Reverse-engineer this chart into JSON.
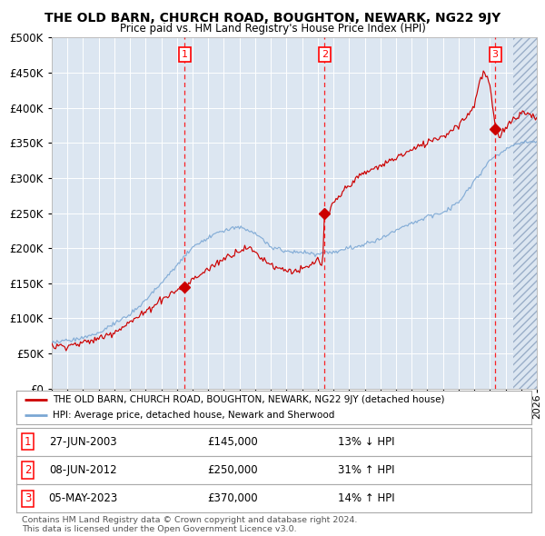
{
  "title": "THE OLD BARN, CHURCH ROAD, BOUGHTON, NEWARK, NG22 9JY",
  "subtitle": "Price paid vs. HM Land Registry's House Price Index (HPI)",
  "red_label": "THE OLD BARN, CHURCH ROAD, BOUGHTON, NEWARK, NG22 9JY (detached house)",
  "blue_label": "HPI: Average price, detached house, Newark and Sherwood",
  "sales": [
    {
      "num": 1,
      "date": "27-JUN-2003",
      "price": 145000,
      "hpi_pct": "13%",
      "hpi_dir": "↓"
    },
    {
      "num": 2,
      "date": "08-JUN-2012",
      "price": 250000,
      "hpi_pct": "31%",
      "hpi_dir": "↑"
    },
    {
      "num": 3,
      "date": "05-MAY-2023",
      "price": 370000,
      "hpi_pct": "14%",
      "hpi_dir": "↑"
    }
  ],
  "sale_years": [
    2003.49,
    2012.44,
    2023.34
  ],
  "sale_prices": [
    145000,
    250000,
    370000
  ],
  "ylim": [
    0,
    500000
  ],
  "xlim_start": 1995,
  "xlim_end": 2026,
  "plot_bg": "#dce6f1",
  "red_color": "#cc0000",
  "blue_color": "#7ba7d4",
  "footer": "Contains HM Land Registry data © Crown copyright and database right 2024.\nThis data is licensed under the Open Government Licence v3.0."
}
